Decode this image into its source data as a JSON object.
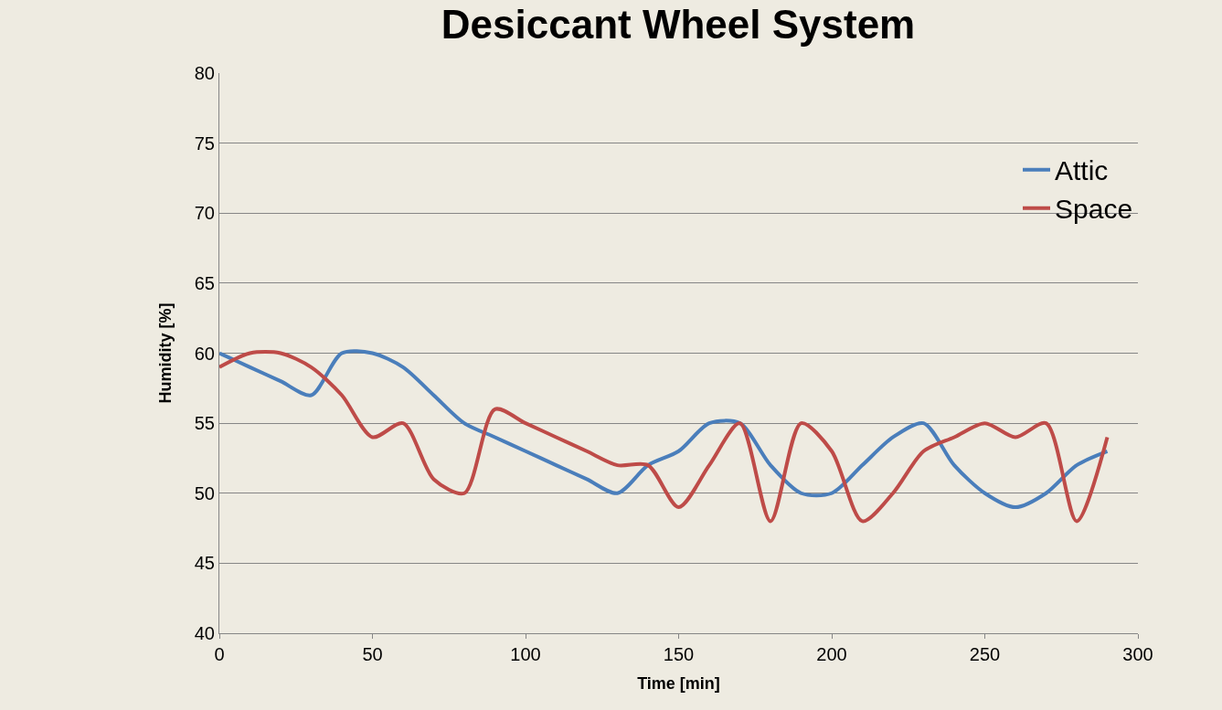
{
  "chart_data": {
    "type": "line",
    "title": "Desiccant Wheel System",
    "xlabel": "Time [min]",
    "ylabel": "Humidity [%]",
    "x": [
      0,
      10,
      20,
      30,
      40,
      50,
      60,
      70,
      80,
      90,
      100,
      110,
      120,
      130,
      140,
      150,
      160,
      170,
      180,
      190,
      200,
      210,
      220,
      230,
      240,
      250,
      260,
      270,
      280,
      290
    ],
    "series": [
      {
        "name": "Attic",
        "color": "#4a7ebb",
        "values": [
          60,
          59,
          58,
          57,
          60,
          60,
          59,
          57,
          55,
          54,
          53,
          52,
          51,
          50,
          52,
          53,
          55,
          55,
          52,
          50,
          50,
          52,
          54,
          55,
          52,
          50,
          49,
          50,
          52,
          53
        ]
      },
      {
        "name": "Space",
        "color": "#be4b48",
        "values": [
          59,
          60,
          60,
          59,
          57,
          54,
          55,
          51,
          50,
          56,
          55,
          54,
          53,
          52,
          52,
          49,
          52,
          55,
          48,
          55,
          53,
          48,
          50,
          53,
          54,
          55,
          54,
          55,
          48,
          54
        ]
      }
    ],
    "xlim": [
      0,
      300
    ],
    "xticks": [
      0,
      50,
      100,
      150,
      200,
      250,
      300
    ],
    "ylim": [
      40,
      80
    ],
    "yticks": [
      40,
      45,
      50,
      55,
      60,
      65,
      70,
      75,
      80
    ],
    "grid": "y",
    "legend": "top right",
    "marker": "none",
    "line_style": "solid"
  }
}
